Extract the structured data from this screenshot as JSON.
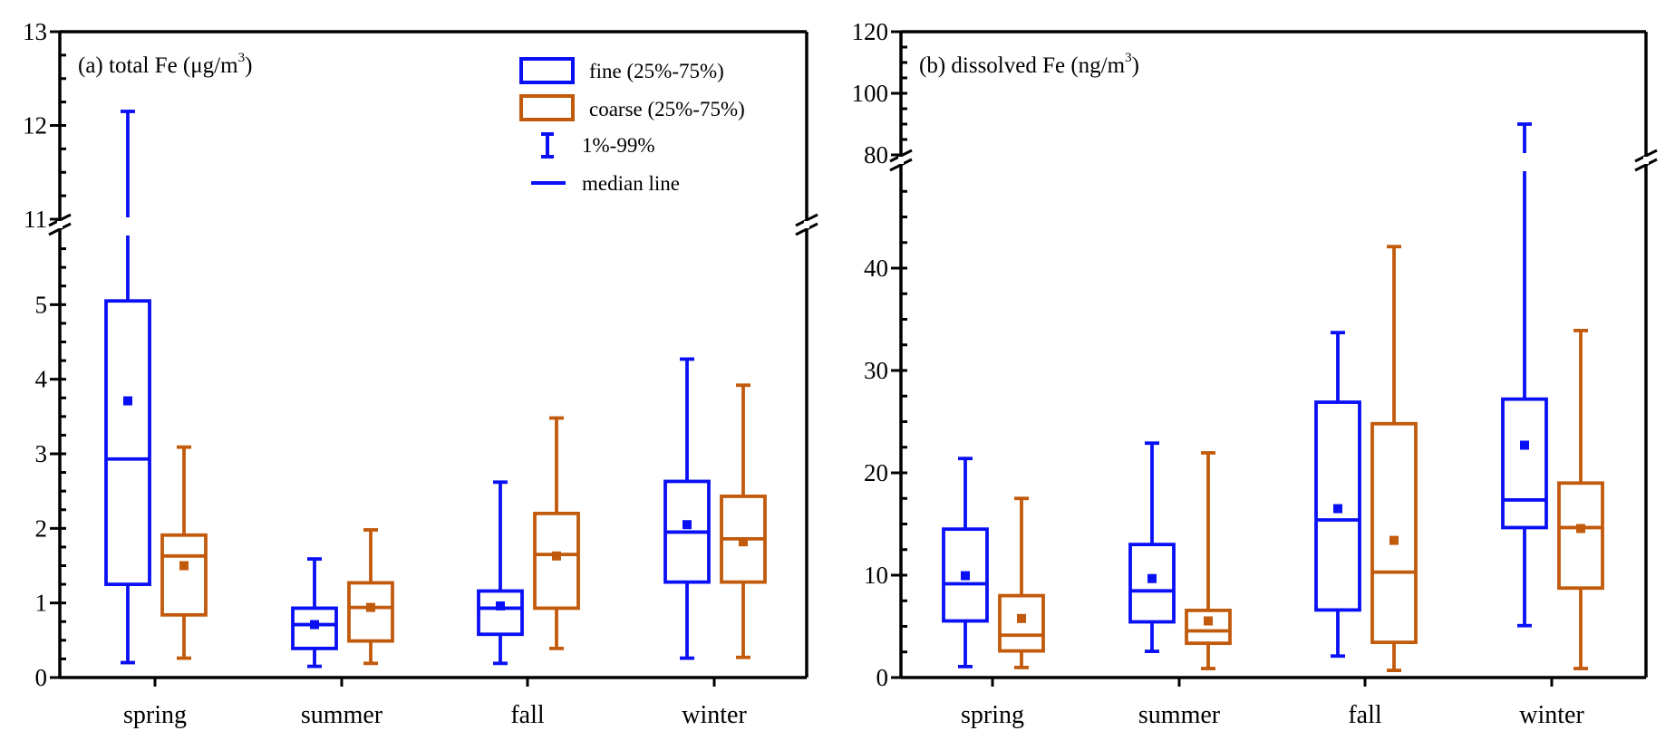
{
  "colors": {
    "fine": "#0a10f5",
    "coarse": "#c25a0c",
    "axis": "#000000"
  },
  "legend": {
    "fine": "fine (25%-75%)",
    "coarse": "coarse (25%-75%)",
    "whisker": "1%-99%",
    "median": "median line"
  },
  "chart_data": [
    {
      "type": "box",
      "title": "(a) total Fe (μg/m",
      "title_sup": "3",
      "title_close": ")",
      "categories": [
        "spring",
        "summer",
        "fall",
        "winter"
      ],
      "yaxis": {
        "broken": true,
        "lower_range": [
          0,
          6
        ],
        "upper_range": [
          11,
          13
        ],
        "lower_ticks": [
          0,
          1,
          2,
          3,
          4,
          5
        ],
        "upper_ticks": [
          11,
          12,
          13
        ],
        "lower_minor_step": 0.25,
        "upper_minor_step": 0.25
      },
      "series": [
        {
          "name": "fine",
          "stats": [
            {
              "p1": 0.2,
              "q1": 1.25,
              "median": 2.93,
              "q3": 5.05,
              "p99": 12.15,
              "mean": 3.71
            },
            {
              "p1": 0.15,
              "q1": 0.39,
              "median": 0.71,
              "q3": 0.93,
              "p99": 1.59,
              "mean": 0.71
            },
            {
              "p1": 0.19,
              "q1": 0.58,
              "median": 0.93,
              "q3": 1.16,
              "p99": 2.62,
              "mean": 0.96
            },
            {
              "p1": 0.26,
              "q1": 1.28,
              "median": 1.95,
              "q3": 2.63,
              "p99": 4.27,
              "mean": 2.05
            }
          ]
        },
        {
          "name": "coarse",
          "stats": [
            {
              "p1": 0.26,
              "q1": 0.84,
              "median": 1.63,
              "q3": 1.91,
              "p99": 3.09,
              "mean": 1.5
            },
            {
              "p1": 0.19,
              "q1": 0.49,
              "median": 0.94,
              "q3": 1.27,
              "p99": 1.98,
              "mean": 0.94
            },
            {
              "p1": 0.39,
              "q1": 0.93,
              "median": 1.65,
              "q3": 2.2,
              "p99": 3.48,
              "mean": 1.63
            },
            {
              "p1": 0.27,
              "q1": 1.28,
              "median": 1.86,
              "q3": 2.43,
              "p99": 3.92,
              "mean": 1.82
            }
          ]
        }
      ]
    },
    {
      "type": "box",
      "title": "(b) dissolved Fe (ng/m",
      "title_sup": "3",
      "title_close": ")",
      "categories": [
        "spring",
        "summer",
        "fall",
        "winter"
      ],
      "yaxis": {
        "broken": true,
        "lower_range": [
          0,
          50
        ],
        "upper_range": [
          80,
          120
        ],
        "lower_ticks": [
          0,
          10,
          20,
          30,
          40
        ],
        "upper_ticks": [
          80,
          100,
          120
        ],
        "lower_minor_step": 2.5,
        "upper_minor_step": 5
      },
      "series": [
        {
          "name": "fine",
          "stats": [
            {
              "p1": 1.07,
              "q1": 5.53,
              "median": 9.16,
              "q3": 14.5,
              "p99": 21.4,
              "mean": 9.95
            },
            {
              "p1": 2.56,
              "q1": 5.44,
              "median": 8.47,
              "q3": 13.0,
              "p99": 22.9,
              "mean": 9.67
            },
            {
              "p1": 2.1,
              "q1": 6.6,
              "median": 15.4,
              "q3": 26.9,
              "p99": 33.7,
              "mean": 16.5
            },
            {
              "p1": 5.07,
              "q1": 14.65,
              "median": 17.35,
              "q3": 27.2,
              "p99": 90,
              "mean": 22.7
            }
          ]
        },
        {
          "name": "coarse",
          "stats": [
            {
              "p1": 0.98,
              "q1": 2.6,
              "median": 4.14,
              "q3": 8.0,
              "p99": 17.5,
              "mean": 5.77
            },
            {
              "p1": 0.88,
              "q1": 3.35,
              "median": 4.56,
              "q3": 6.56,
              "p99": 21.95,
              "mean": 5.53
            },
            {
              "p1": 0.7,
              "q1": 3.44,
              "median": 10.3,
              "q3": 24.8,
              "p99": 42.1,
              "mean": 13.4
            },
            {
              "p1": 0.88,
              "q1": 8.74,
              "median": 14.65,
              "q3": 19.0,
              "p99": 33.9,
              "mean": 14.56
            }
          ]
        }
      ]
    }
  ]
}
